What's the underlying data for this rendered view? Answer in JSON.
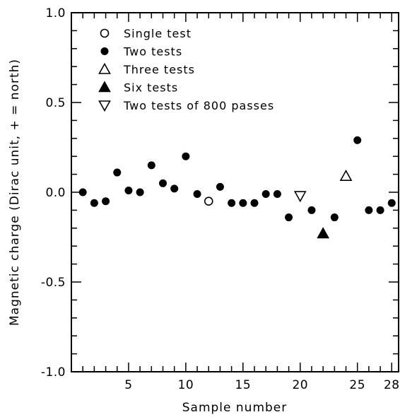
{
  "chart_data": {
    "type": "scatter",
    "xlabel": "Sample number",
    "ylabel": "Magnetic charge (Dirac unit, + = north)",
    "xlim": [
      0,
      28.6
    ],
    "ylim": [
      -1.0,
      1.0
    ],
    "x_ticks": [
      5,
      10,
      15,
      20,
      25,
      28
    ],
    "x_tick_labels": [
      "5",
      "10",
      "15",
      "20",
      "25",
      "28"
    ],
    "y_ticks": [
      -1.0,
      -0.5,
      0.0,
      0.5,
      1.0
    ],
    "y_tick_labels": [
      "-1.0",
      "-0.5",
      "0.0",
      "0.5",
      "1.0"
    ],
    "grid": false,
    "legend_position": "top-left",
    "series": [
      {
        "name": "Single test",
        "marker": "circle-open",
        "points": [
          [
            12,
            -0.05
          ]
        ]
      },
      {
        "name": "Two tests",
        "marker": "circle-filled",
        "points": [
          [
            1,
            0.0
          ],
          [
            2,
            -0.06
          ],
          [
            3,
            -0.05
          ],
          [
            4,
            0.11
          ],
          [
            5,
            0.01
          ],
          [
            6,
            0.0
          ],
          [
            7,
            0.15
          ],
          [
            8,
            0.05
          ],
          [
            9,
            0.02
          ],
          [
            10,
            0.2
          ],
          [
            11,
            -0.01
          ],
          [
            13,
            0.03
          ],
          [
            14,
            -0.06
          ],
          [
            15,
            -0.06
          ],
          [
            16,
            -0.06
          ],
          [
            17,
            -0.01
          ],
          [
            18,
            -0.01
          ],
          [
            19,
            -0.14
          ],
          [
            21,
            -0.1
          ],
          [
            23,
            -0.14
          ],
          [
            25,
            0.29
          ],
          [
            26,
            -0.1
          ],
          [
            27,
            -0.1
          ],
          [
            28,
            -0.06
          ]
        ]
      },
      {
        "name": "Three tests",
        "marker": "triangle-up-open",
        "points": [
          [
            24,
            0.09
          ]
        ]
      },
      {
        "name": "Six tests",
        "marker": "triangle-up-filled",
        "points": [
          [
            22,
            -0.23
          ]
        ]
      },
      {
        "name": "Two tests of 800 passes",
        "marker": "triangle-down-open",
        "points": [
          [
            20,
            -0.02
          ]
        ]
      }
    ]
  }
}
